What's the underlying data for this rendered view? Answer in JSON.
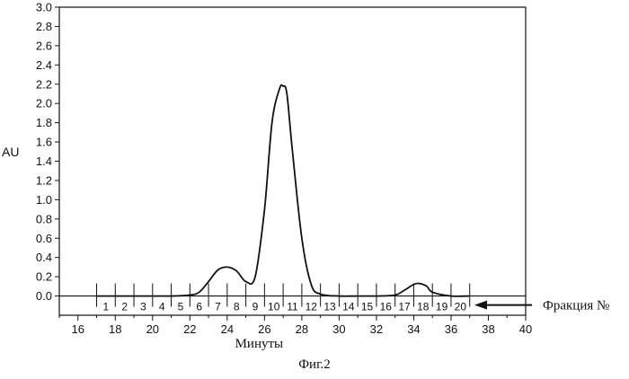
{
  "chart_data": {
    "type": "line",
    "xlabel": "Минуты",
    "ylabel": "AU",
    "xlim": [
      15,
      40
    ],
    "ylim": [
      -0.2,
      3.0
    ],
    "xticks": [
      16,
      18,
      20,
      22,
      24,
      26,
      28,
      30,
      32,
      34,
      36,
      38,
      40
    ],
    "yticks": [
      0.0,
      0.2,
      0.4,
      0.6,
      0.8,
      1.0,
      1.2,
      1.4,
      1.6,
      1.8,
      2.0,
      2.2,
      2.4,
      2.6,
      2.8,
      3.0
    ],
    "grid": false,
    "series": [
      {
        "x": [
          17.0,
          20.0,
          21.0,
          22.0,
          22.5,
          23.0,
          23.5,
          24.0,
          24.5,
          25.0,
          25.5,
          26.0,
          26.4,
          26.8,
          27.0,
          27.2,
          27.5,
          28.0,
          28.5,
          29.0,
          30.0,
          31.0,
          32.0,
          33.0,
          33.5,
          34.0,
          34.3,
          34.7,
          35.0,
          36.0,
          37.0
        ],
        "y": [
          0.0,
          0.0,
          0.0,
          0.01,
          0.04,
          0.15,
          0.27,
          0.3,
          0.26,
          0.15,
          0.2,
          0.9,
          1.8,
          2.15,
          2.18,
          2.1,
          1.5,
          0.6,
          0.12,
          0.02,
          0.0,
          0.0,
          0.0,
          0.01,
          0.06,
          0.12,
          0.13,
          0.1,
          0.04,
          0.0,
          0.0
        ]
      }
    ],
    "fractions": {
      "labels": [
        "1",
        "2",
        "3",
        "4",
        "5",
        "6",
        "7",
        "8",
        "9",
        "10",
        "11",
        "12",
        "13",
        "14",
        "15",
        "16",
        "17",
        "18",
        "19",
        "20"
      ],
      "boundaries": [
        17.0,
        18.0,
        19.0,
        20.0,
        21.0,
        22.0,
        23.0,
        24.0,
        25.0,
        26.0,
        27.0,
        28.0,
        29.0,
        30.0,
        31.0,
        32.0,
        33.0,
        34.0,
        35.0,
        36.0,
        37.0
      ]
    },
    "annotation": "Фракция №"
  },
  "caption": "Фиг.2"
}
